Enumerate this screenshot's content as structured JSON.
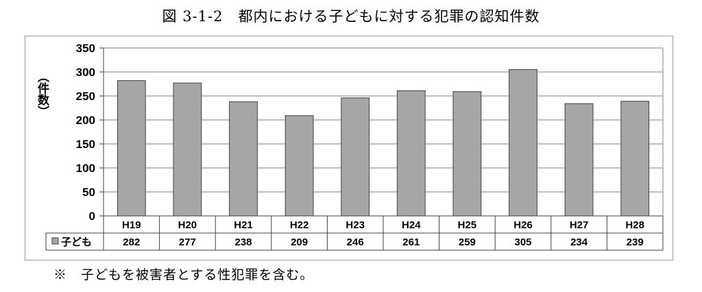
{
  "title": "図 3-1-2　都内における子どもに対する犯罪の認知件数",
  "note": "※　子どもを被害者とする性犯罪を含む。",
  "chart_data": {
    "type": "bar",
    "title": "図 3-1-2　都内における子どもに対する犯罪の認知件数",
    "xlabel": "",
    "ylabel": "（件数）",
    "categories": [
      "H19",
      "H20",
      "H21",
      "H22",
      "H23",
      "H24",
      "H25",
      "H26",
      "H27",
      "H28"
    ],
    "series": [
      {
        "name": "子ども",
        "values": [
          282,
          277,
          238,
          209,
          246,
          261,
          259,
          305,
          234,
          239
        ]
      }
    ],
    "ylim": [
      0,
      350
    ],
    "yticks": [
      0,
      50,
      100,
      150,
      200,
      250,
      300,
      350
    ],
    "grid": true,
    "data_table": true,
    "colors": {
      "bar": "#a6a6a6",
      "bar_stroke": "#404040",
      "grid": "#808080"
    }
  }
}
